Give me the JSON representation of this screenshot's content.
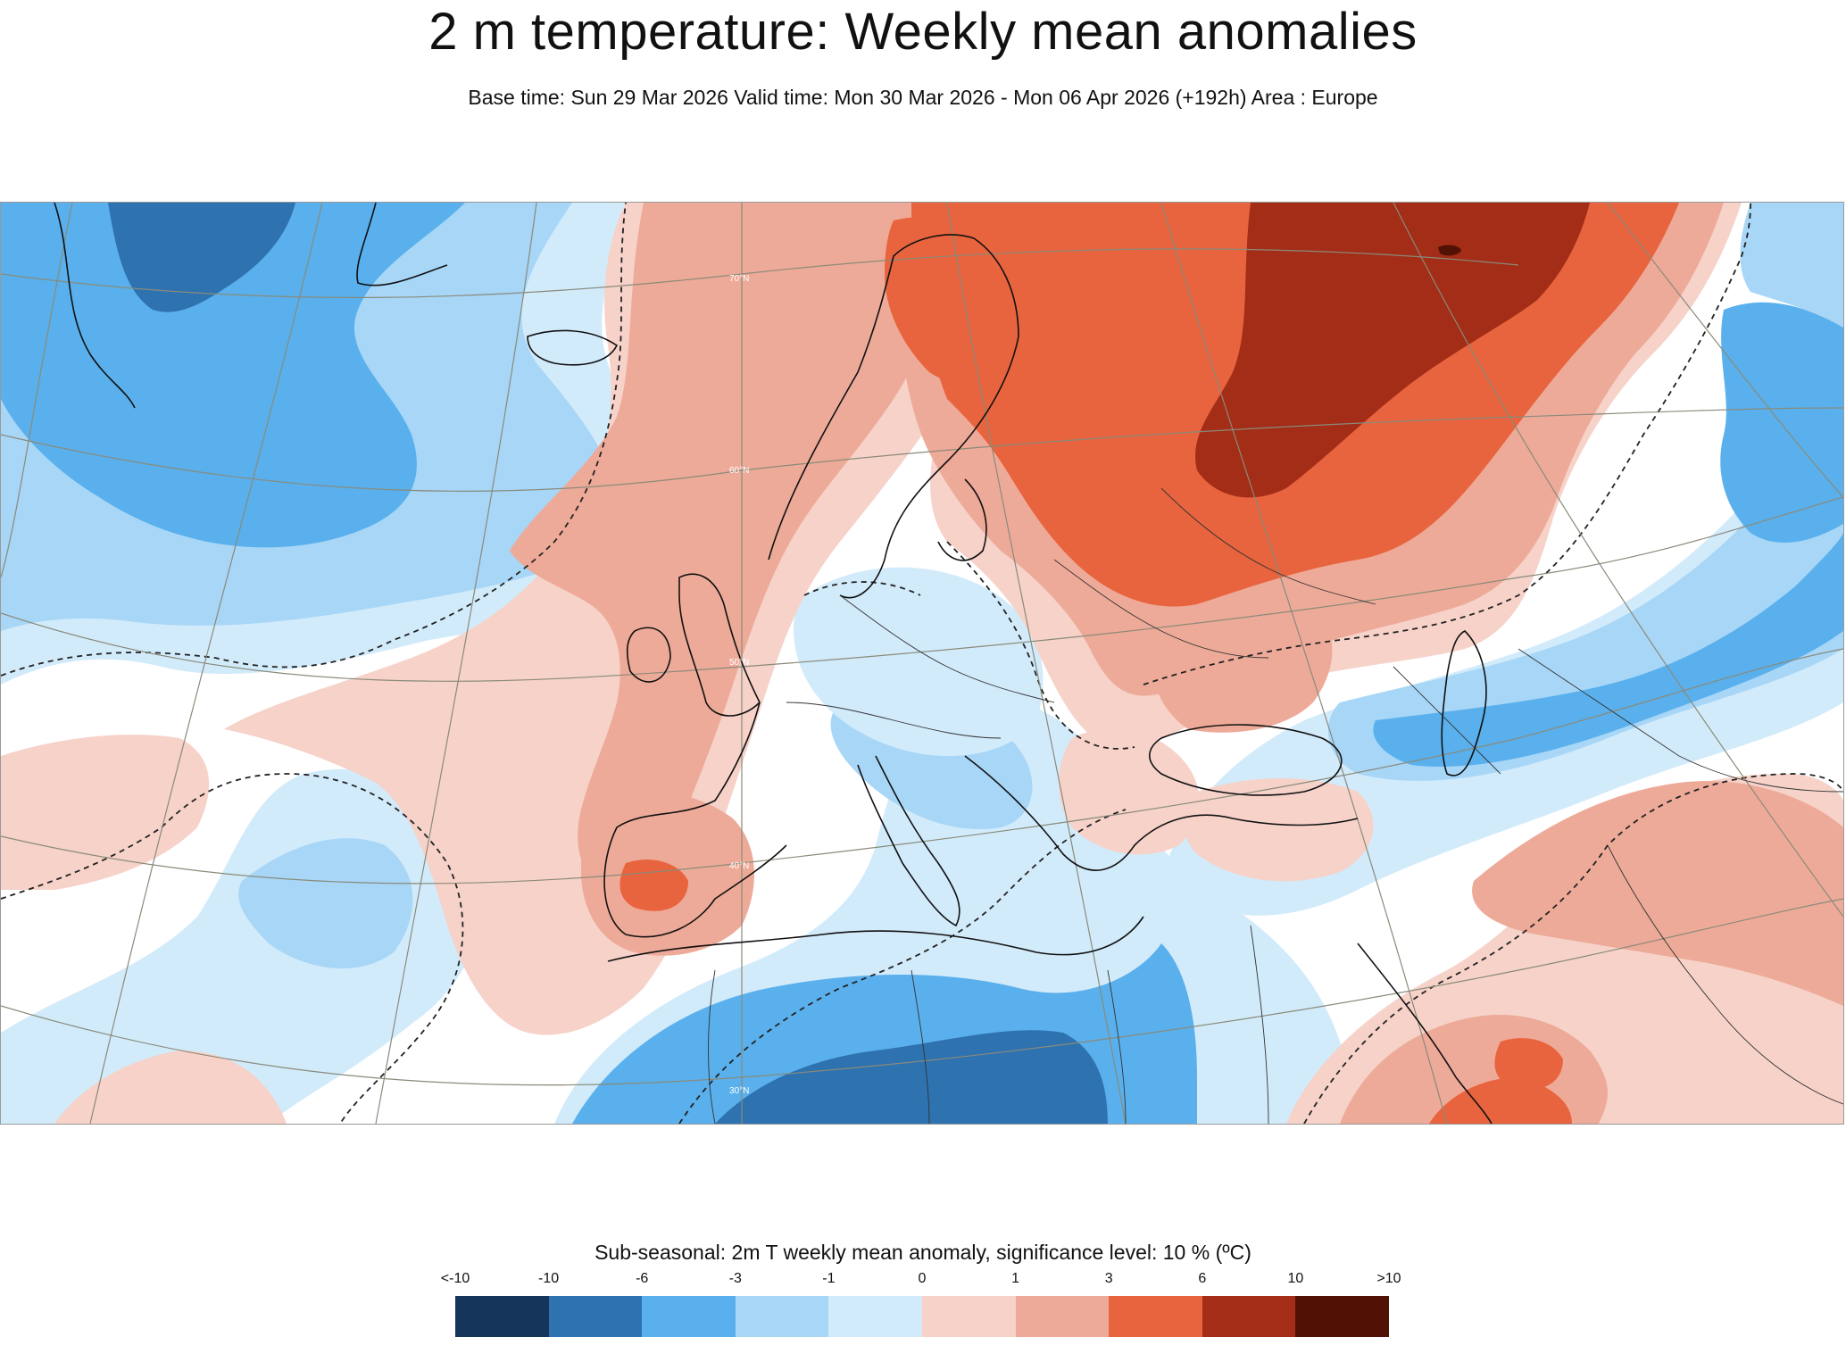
{
  "header": {
    "title": "2 m temperature: Weekly mean anomalies",
    "subtitle": "Base time: Sun 29 Mar 2026 Valid time: Mon 30 Mar 2026 - Mon 06 Apr 2026 (+192h) Area : Europe"
  },
  "map": {
    "lat_labels": [
      "70°N",
      "60°N",
      "50°N",
      "40°N",
      "30°N"
    ]
  },
  "legend": {
    "title": "Sub-seasonal: 2m T weekly mean anomaly, significance level: 10 % (ºC)",
    "labels": [
      "<-10",
      "-10",
      "-6",
      "-3",
      "-1",
      "0",
      "1",
      "3",
      "6",
      "10",
      ">10"
    ],
    "colors": [
      "#15365a",
      "#2e72b0",
      "#5ab0ec",
      "#a7d6f7",
      "#d2ebfb",
      "#f6d2c9",
      "#eeaa98",
      "#e8643e",
      "#a32d16",
      "#521105"
    ]
  }
}
